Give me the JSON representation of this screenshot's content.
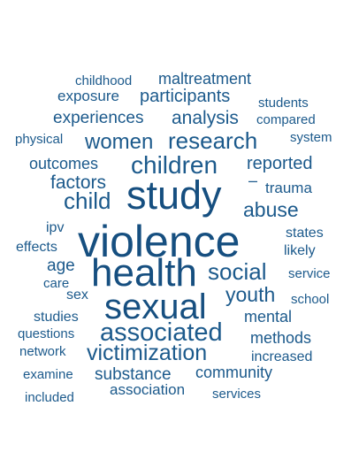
{
  "word_cloud": {
    "color": "#1c5a8c",
    "background": "#ffffff",
    "words": [
      {
        "id": "violence",
        "text": "violence"
      },
      {
        "id": "study",
        "text": "study"
      },
      {
        "id": "health",
        "text": "health"
      },
      {
        "id": "sexual",
        "text": "sexual"
      },
      {
        "id": "children",
        "text": "children"
      },
      {
        "id": "associated",
        "text": "associated"
      },
      {
        "id": "research",
        "text": "research"
      },
      {
        "id": "victimization",
        "text": "victimization"
      },
      {
        "id": "child",
        "text": "child"
      },
      {
        "id": "social",
        "text": "social"
      },
      {
        "id": "women",
        "text": "women"
      },
      {
        "id": "abuse",
        "text": "abuse"
      },
      {
        "id": "youth",
        "text": "youth"
      },
      {
        "id": "factors",
        "text": "factors"
      },
      {
        "id": "reported",
        "text": "reported"
      },
      {
        "id": "outcomes",
        "text": "outcomes"
      },
      {
        "id": "experiences",
        "text": "experiences"
      },
      {
        "id": "analysis",
        "text": "analysis"
      },
      {
        "id": "participants",
        "text": "participants"
      },
      {
        "id": "maltreatment",
        "text": "maltreatment"
      },
      {
        "id": "community",
        "text": "community"
      },
      {
        "id": "substance",
        "text": "substance"
      },
      {
        "id": "association",
        "text": "association"
      },
      {
        "id": "mental",
        "text": "mental"
      },
      {
        "id": "methods",
        "text": "methods"
      },
      {
        "id": "trauma",
        "text": "trauma"
      },
      {
        "id": "age",
        "text": "age"
      },
      {
        "id": "exposure",
        "text": "exposure"
      },
      {
        "id": "increased",
        "text": "increased"
      },
      {
        "id": "childhood",
        "text": "childhood"
      },
      {
        "id": "students",
        "text": "students"
      },
      {
        "id": "compared",
        "text": "compared"
      },
      {
        "id": "system",
        "text": "system"
      },
      {
        "id": "physical",
        "text": "physical"
      },
      {
        "id": "states",
        "text": "states"
      },
      {
        "id": "likely",
        "text": "likely"
      },
      {
        "id": "ipv",
        "text": "ipv"
      },
      {
        "id": "effects",
        "text": "effects"
      },
      {
        "id": "service",
        "text": "service"
      },
      {
        "id": "care",
        "text": "care"
      },
      {
        "id": "sex",
        "text": "sex"
      },
      {
        "id": "school",
        "text": "school"
      },
      {
        "id": "studies",
        "text": "studies"
      },
      {
        "id": "questions",
        "text": "questions"
      },
      {
        "id": "network",
        "text": "network"
      },
      {
        "id": "examine",
        "text": "examine"
      },
      {
        "id": "included",
        "text": "included"
      },
      {
        "id": "services",
        "text": "services"
      },
      {
        "id": "dash",
        "text": "–"
      }
    ]
  }
}
